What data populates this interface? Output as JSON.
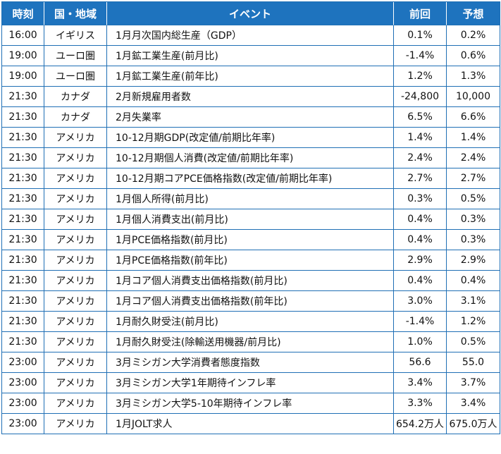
{
  "header": {
    "time": "時刻",
    "country": "国・地域",
    "event": "イベント",
    "previous": "前回",
    "forecast": "予想"
  },
  "rows": [
    {
      "time": "16:00",
      "country": "イギリス",
      "event": "1月月次国内総生産（GDP）",
      "previous": "0.1%",
      "forecast": "0.2%"
    },
    {
      "time": "19:00",
      "country": "ユーロ圏",
      "event": "1月鉱工業生産(前月比)",
      "previous": "-1.4%",
      "forecast": "0.6%"
    },
    {
      "time": "19:00",
      "country": "ユーロ圏",
      "event": "1月鉱工業生産(前年比)",
      "previous": "1.2%",
      "forecast": "1.3%"
    },
    {
      "time": "21:30",
      "country": "カナダ",
      "event": "2月新規雇用者数",
      "previous": "-24,800",
      "forecast": "10,000"
    },
    {
      "time": "21:30",
      "country": "カナダ",
      "event": "2月失業率",
      "previous": "6.5%",
      "forecast": "6.6%"
    },
    {
      "time": "21:30",
      "country": "アメリカ",
      "event": "10-12月期GDP(改定値/前期比年率)",
      "previous": "1.4%",
      "forecast": "1.4%"
    },
    {
      "time": "21:30",
      "country": "アメリカ",
      "event": "10-12月期個人消費(改定値/前期比年率)",
      "previous": "2.4%",
      "forecast": "2.4%"
    },
    {
      "time": "21:30",
      "country": "アメリカ",
      "event": "10-12月期コアPCE価格指数(改定値/前期比年率)",
      "previous": "2.7%",
      "forecast": "2.7%"
    },
    {
      "time": "21:30",
      "country": "アメリカ",
      "event": "1月個人所得(前月比)",
      "previous": "0.3%",
      "forecast": "0.5%"
    },
    {
      "time": "21:30",
      "country": "アメリカ",
      "event": "1月個人消費支出(前月比)",
      "previous": "0.4%",
      "forecast": "0.3%"
    },
    {
      "time": "21:30",
      "country": "アメリカ",
      "event": "1月PCE価格指数(前月比)",
      "previous": "0.4%",
      "forecast": "0.3%"
    },
    {
      "time": "21:30",
      "country": "アメリカ",
      "event": "1月PCE価格指数(前年比)",
      "previous": "2.9%",
      "forecast": "2.9%"
    },
    {
      "time": "21:30",
      "country": "アメリカ",
      "event": "1月コア個人消費支出価格指数(前月比)",
      "previous": "0.4%",
      "forecast": "0.4%"
    },
    {
      "time": "21:30",
      "country": "アメリカ",
      "event": "1月コア個人消費支出価格指数(前年比)",
      "previous": "3.0%",
      "forecast": "3.1%"
    },
    {
      "time": "21:30",
      "country": "アメリカ",
      "event": "1月耐久財受注(前月比)",
      "previous": "-1.4%",
      "forecast": "1.2%"
    },
    {
      "time": "21:30",
      "country": "アメリカ",
      "event": "1月耐久財受注(除輸送用機器/前月比)",
      "previous": "1.0%",
      "forecast": "0.5%"
    },
    {
      "time": "23:00",
      "country": "アメリカ",
      "event": "3月ミシガン大学消費者態度指数",
      "previous": "56.6",
      "forecast": "55.0"
    },
    {
      "time": "23:00",
      "country": "アメリカ",
      "event": "3月ミシガン大学1年期待インフレ率",
      "previous": "3.4%",
      "forecast": "3.7%"
    },
    {
      "time": "23:00",
      "country": "アメリカ",
      "event": "3月ミシガン大学5-10年期待インフレ率",
      "previous": "3.3%",
      "forecast": "3.4%"
    },
    {
      "time": "23:00",
      "country": "アメリカ",
      "event": "1月JOLT求人",
      "previous": "654.2万人",
      "forecast": "675.0万人"
    }
  ]
}
